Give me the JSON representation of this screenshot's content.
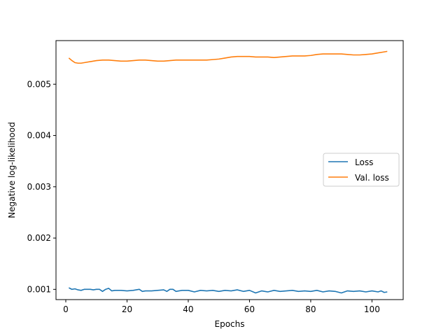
{
  "chart_data": {
    "type": "line",
    "title": "",
    "xlabel": "Epochs",
    "ylabel": "Negative log-likelihood",
    "xlim": [
      -3.2,
      110.2
    ],
    "ylim": [
      0.0008,
      0.00585
    ],
    "xticks": [
      0,
      20,
      40,
      60,
      80,
      100
    ],
    "xtick_labels": [
      "0",
      "20",
      "40",
      "60",
      "80",
      "100"
    ],
    "yticks": [
      0.001,
      0.002,
      0.003,
      0.004,
      0.005
    ],
    "ytick_labels": [
      "0.001",
      "0.002",
      "0.003",
      "0.004",
      "0.005"
    ],
    "grid": false,
    "legend_position": "center-right",
    "series": [
      {
        "name": "Loss",
        "color": "#1f77b4",
        "points": [
          [
            1,
            0.00103
          ],
          [
            2,
            0.001
          ],
          [
            3,
            0.00101
          ],
          [
            4,
            0.00099
          ],
          [
            5,
            0.00098
          ],
          [
            6,
            0.001
          ],
          [
            7,
            0.001
          ],
          [
            8,
            0.001
          ],
          [
            9,
            0.00099
          ],
          [
            10,
            0.001
          ],
          [
            11,
            0.001
          ],
          [
            12,
            0.00096
          ],
          [
            13,
            0.001
          ],
          [
            14,
            0.00102
          ],
          [
            15,
            0.00097
          ],
          [
            16,
            0.00098
          ],
          [
            18,
            0.00098
          ],
          [
            20,
            0.00097
          ],
          [
            22,
            0.00098
          ],
          [
            24,
            0.001
          ],
          [
            25,
            0.00096
          ],
          [
            26,
            0.00097
          ],
          [
            28,
            0.00097
          ],
          [
            30,
            0.00098
          ],
          [
            32,
            0.00099
          ],
          [
            33,
            0.00096
          ],
          [
            34,
            0.001
          ],
          [
            35,
            0.001
          ],
          [
            36,
            0.00096
          ],
          [
            38,
            0.00098
          ],
          [
            40,
            0.00098
          ],
          [
            42,
            0.00095
          ],
          [
            44,
            0.00098
          ],
          [
            46,
            0.00097
          ],
          [
            48,
            0.00098
          ],
          [
            50,
            0.00096
          ],
          [
            52,
            0.00098
          ],
          [
            54,
            0.00097
          ],
          [
            56,
            0.00099
          ],
          [
            58,
            0.00096
          ],
          [
            60,
            0.00098
          ],
          [
            62,
            0.00093
          ],
          [
            64,
            0.00097
          ],
          [
            66,
            0.00095
          ],
          [
            68,
            0.00098
          ],
          [
            70,
            0.00096
          ],
          [
            72,
            0.00097
          ],
          [
            74,
            0.00098
          ],
          [
            76,
            0.00096
          ],
          [
            78,
            0.00097
          ],
          [
            80,
            0.00096
          ],
          [
            82,
            0.00098
          ],
          [
            84,
            0.00095
          ],
          [
            86,
            0.00097
          ],
          [
            88,
            0.00096
          ],
          [
            90,
            0.00093
          ],
          [
            92,
            0.00097
          ],
          [
            94,
            0.00096
          ],
          [
            96,
            0.00097
          ],
          [
            98,
            0.00095
          ],
          [
            100,
            0.00097
          ],
          [
            102,
            0.00095
          ],
          [
            103,
            0.00097
          ],
          [
            104,
            0.00094
          ],
          [
            105,
            0.00095
          ]
        ]
      },
      {
        "name": "Val. loss",
        "color": "#ff7f0e",
        "points": [
          [
            1,
            0.00551
          ],
          [
            2,
            0.00546
          ],
          [
            3,
            0.00542
          ],
          [
            4,
            0.00541
          ],
          [
            5,
            0.00541
          ],
          [
            6,
            0.00542
          ],
          [
            8,
            0.00544
          ],
          [
            10,
            0.00546
          ],
          [
            12,
            0.00547
          ],
          [
            14,
            0.00547
          ],
          [
            16,
            0.00546
          ],
          [
            18,
            0.00545
          ],
          [
            20,
            0.00545
          ],
          [
            22,
            0.00546
          ],
          [
            24,
            0.00547
          ],
          [
            26,
            0.00547
          ],
          [
            28,
            0.00546
          ],
          [
            30,
            0.00545
          ],
          [
            32,
            0.00545
          ],
          [
            34,
            0.00546
          ],
          [
            36,
            0.00547
          ],
          [
            38,
            0.00547
          ],
          [
            40,
            0.00547
          ],
          [
            42,
            0.00547
          ],
          [
            44,
            0.00547
          ],
          [
            46,
            0.00547
          ],
          [
            48,
            0.00548
          ],
          [
            50,
            0.00549
          ],
          [
            52,
            0.00551
          ],
          [
            54,
            0.00553
          ],
          [
            56,
            0.00554
          ],
          [
            58,
            0.00554
          ],
          [
            60,
            0.00554
          ],
          [
            62,
            0.00553
          ],
          [
            64,
            0.00553
          ],
          [
            66,
            0.00553
          ],
          [
            68,
            0.00552
          ],
          [
            70,
            0.00553
          ],
          [
            72,
            0.00554
          ],
          [
            74,
            0.00555
          ],
          [
            76,
            0.00555
          ],
          [
            78,
            0.00555
          ],
          [
            80,
            0.00556
          ],
          [
            82,
            0.00558
          ],
          [
            84,
            0.00559
          ],
          [
            86,
            0.00559
          ],
          [
            88,
            0.00559
          ],
          [
            90,
            0.00559
          ],
          [
            92,
            0.00558
          ],
          [
            94,
            0.00557
          ],
          [
            96,
            0.00557
          ],
          [
            98,
            0.00558
          ],
          [
            100,
            0.00559
          ],
          [
            102,
            0.00561
          ],
          [
            104,
            0.00563
          ],
          [
            105,
            0.00564
          ]
        ]
      }
    ]
  }
}
